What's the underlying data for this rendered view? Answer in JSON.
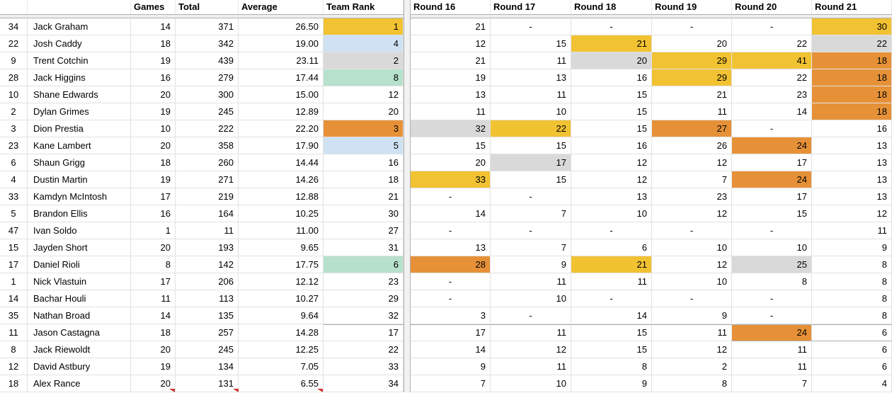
{
  "app": {
    "type": "spreadsheet-grid"
  },
  "table": {
    "headers": {
      "row_num": "",
      "name": "",
      "games": "Games",
      "total": "Total",
      "average": "Average",
      "team_rank": "Team Rank",
      "rounds": [
        "Round 16",
        "Round 17",
        "Round 18",
        "Round 19",
        "Round 20",
        "Round 21"
      ]
    },
    "colors": {
      "gold": "#F1C232",
      "orange": "#E69138",
      "gray": "#D9D9D9",
      "blue": "#CFE2F3",
      "green": "#B7E1CD"
    },
    "rows": [
      {
        "num": "34",
        "name": "Jack Graham",
        "games": "14",
        "total": "371",
        "average": "26.50",
        "rank": "1",
        "rank_color": "gold",
        "rounds": [
          "21",
          "-",
          "-",
          "-",
          "-",
          "30"
        ],
        "round_colors": [
          null,
          null,
          null,
          null,
          null,
          "gold"
        ]
      },
      {
        "num": "22",
        "name": "Josh Caddy",
        "games": "18",
        "total": "342",
        "average": "19.00",
        "rank": "4",
        "rank_color": "blue",
        "rounds": [
          "12",
          "15",
          "21",
          "20",
          "22",
          "22"
        ],
        "round_colors": [
          null,
          null,
          "gold",
          null,
          null,
          "gray"
        ]
      },
      {
        "num": "9",
        "name": "Trent Cotchin",
        "games": "19",
        "total": "439",
        "average": "23.11",
        "rank": "2",
        "rank_color": "gray",
        "rounds": [
          "21",
          "11",
          "20",
          "29",
          "41",
          "18"
        ],
        "round_colors": [
          null,
          null,
          "gray",
          "gold",
          "gold",
          "orange"
        ]
      },
      {
        "num": "28",
        "name": "Jack Higgins",
        "games": "16",
        "total": "279",
        "average": "17.44",
        "rank": "8",
        "rank_color": "green",
        "rounds": [
          "19",
          "13",
          "16",
          "29",
          "22",
          "18"
        ],
        "round_colors": [
          null,
          null,
          null,
          "gold",
          null,
          "orange"
        ]
      },
      {
        "num": "10",
        "name": "Shane Edwards",
        "games": "20",
        "total": "300",
        "average": "15.00",
        "rank": "12",
        "rank_color": null,
        "rounds": [
          "13",
          "11",
          "15",
          "21",
          "23",
          "18"
        ],
        "round_colors": [
          null,
          null,
          null,
          null,
          null,
          "orange"
        ]
      },
      {
        "num": "2",
        "name": "Dylan Grimes",
        "games": "19",
        "total": "245",
        "average": "12.89",
        "rank": "20",
        "rank_color": null,
        "rounds": [
          "11",
          "10",
          "15",
          "11",
          "14",
          "18"
        ],
        "round_colors": [
          null,
          null,
          null,
          null,
          null,
          "orange"
        ]
      },
      {
        "num": "3",
        "name": "Dion Prestia",
        "games": "10",
        "total": "222",
        "average": "22.20",
        "rank": "3",
        "rank_color": "orange",
        "rounds": [
          "32",
          "22",
          "15",
          "27",
          "-",
          "16"
        ],
        "round_colors": [
          "gray",
          "gold",
          null,
          "orange",
          null,
          null
        ]
      },
      {
        "num": "23",
        "name": "Kane Lambert",
        "games": "20",
        "total": "358",
        "average": "17.90",
        "rank": "5",
        "rank_color": "blue",
        "rounds": [
          "15",
          "15",
          "16",
          "26",
          "24",
          "13"
        ],
        "round_colors": [
          null,
          null,
          null,
          null,
          "orange",
          null
        ]
      },
      {
        "num": "6",
        "name": "Shaun Grigg",
        "games": "18",
        "total": "260",
        "average": "14.44",
        "rank": "16",
        "rank_color": null,
        "rounds": [
          "20",
          "17",
          "12",
          "12",
          "17",
          "13"
        ],
        "round_colors": [
          null,
          "gray",
          null,
          null,
          null,
          null
        ]
      },
      {
        "num": "4",
        "name": "Dustin Martin",
        "games": "19",
        "total": "271",
        "average": "14.26",
        "rank": "18",
        "rank_color": null,
        "rounds": [
          "33",
          "15",
          "12",
          "7",
          "24",
          "13"
        ],
        "round_colors": [
          "gold",
          null,
          null,
          null,
          "orange",
          null
        ]
      },
      {
        "num": "33",
        "name": "Kamdyn McIntosh",
        "games": "17",
        "total": "219",
        "average": "12.88",
        "rank": "21",
        "rank_color": null,
        "rounds": [
          "-",
          "-",
          "13",
          "23",
          "17",
          "13"
        ],
        "round_colors": [
          null,
          null,
          null,
          null,
          null,
          null
        ]
      },
      {
        "num": "5",
        "name": "Brandon Ellis",
        "games": "16",
        "total": "164",
        "average": "10.25",
        "rank": "30",
        "rank_color": null,
        "rounds": [
          "14",
          "7",
          "10",
          "12",
          "15",
          "12"
        ],
        "round_colors": [
          null,
          null,
          null,
          null,
          null,
          null
        ]
      },
      {
        "num": "47",
        "name": "Ivan Soldo",
        "games": "1",
        "total": "11",
        "average": "11.00",
        "rank": "27",
        "rank_color": null,
        "rounds": [
          "-",
          "-",
          "-",
          "-",
          "-",
          "11"
        ],
        "round_colors": [
          null,
          null,
          null,
          null,
          null,
          null
        ]
      },
      {
        "num": "15",
        "name": "Jayden Short",
        "games": "20",
        "total": "193",
        "average": "9.65",
        "rank": "31",
        "rank_color": null,
        "rounds": [
          "13",
          "7",
          "6",
          "10",
          "10",
          "9"
        ],
        "round_colors": [
          null,
          null,
          null,
          null,
          null,
          null
        ]
      },
      {
        "num": "17",
        "name": "Daniel Rioli",
        "games": "8",
        "total": "142",
        "average": "17.75",
        "rank": "6",
        "rank_color": "green",
        "rounds": [
          "28",
          "9",
          "21",
          "12",
          "25",
          "8"
        ],
        "round_colors": [
          "orange",
          null,
          "gold",
          null,
          "gray",
          null
        ]
      },
      {
        "num": "1",
        "name": "Nick Vlastuin",
        "games": "17",
        "total": "206",
        "average": "12.12",
        "rank": "23",
        "rank_color": null,
        "rounds": [
          "-",
          "11",
          "11",
          "10",
          "8",
          "8"
        ],
        "round_colors": [
          null,
          null,
          null,
          null,
          null,
          null
        ]
      },
      {
        "num": "14",
        "name": "Bachar Houli",
        "games": "11",
        "total": "113",
        "average": "10.27",
        "rank": "29",
        "rank_color": null,
        "rounds": [
          "-",
          "10",
          "-",
          "-",
          "-",
          "8"
        ],
        "round_colors": [
          null,
          null,
          null,
          null,
          null,
          null
        ]
      },
      {
        "num": "35",
        "name": "Nathan Broad",
        "games": "14",
        "total": "135",
        "average": "9.64",
        "rank": "32",
        "rank_color": null,
        "rounds": [
          "3",
          "-",
          "14",
          "9",
          "-",
          "8"
        ],
        "round_colors": [
          null,
          null,
          null,
          null,
          null,
          null
        ]
      },
      {
        "num": "11",
        "name": "Jason Castagna",
        "games": "18",
        "total": "257",
        "average": "14.28",
        "rank": "17",
        "rank_color": null,
        "rounds": [
          "17",
          "11",
          "15",
          "11",
          "24",
          "6"
        ],
        "round_colors": [
          null,
          null,
          null,
          null,
          "orange",
          null
        ],
        "range_border": true
      },
      {
        "num": "8",
        "name": "Jack Riewoldt",
        "games": "20",
        "total": "245",
        "average": "12.25",
        "rank": "22",
        "rank_color": null,
        "rounds": [
          "14",
          "12",
          "15",
          "12",
          "11",
          "6"
        ],
        "round_colors": [
          null,
          null,
          null,
          null,
          null,
          null
        ]
      },
      {
        "num": "12",
        "name": "David Astbury",
        "games": "19",
        "total": "134",
        "average": "7.05",
        "rank": "33",
        "rank_color": null,
        "rounds": [
          "9",
          "11",
          "8",
          "2",
          "11",
          "6"
        ],
        "round_colors": [
          null,
          null,
          null,
          null,
          null,
          null
        ]
      },
      {
        "num": "18",
        "name": "Alex Rance",
        "games": "20",
        "total": "131",
        "average": "6.55",
        "rank": "34",
        "rank_color": null,
        "rounds": [
          "7",
          "10",
          "9",
          "8",
          "7",
          "4"
        ],
        "round_colors": [
          null,
          null,
          null,
          null,
          null,
          null
        ]
      }
    ]
  },
  "markers": {
    "invalid_data_color": "#d0342c",
    "positions_x": [
      239,
      329,
      448
    ]
  }
}
